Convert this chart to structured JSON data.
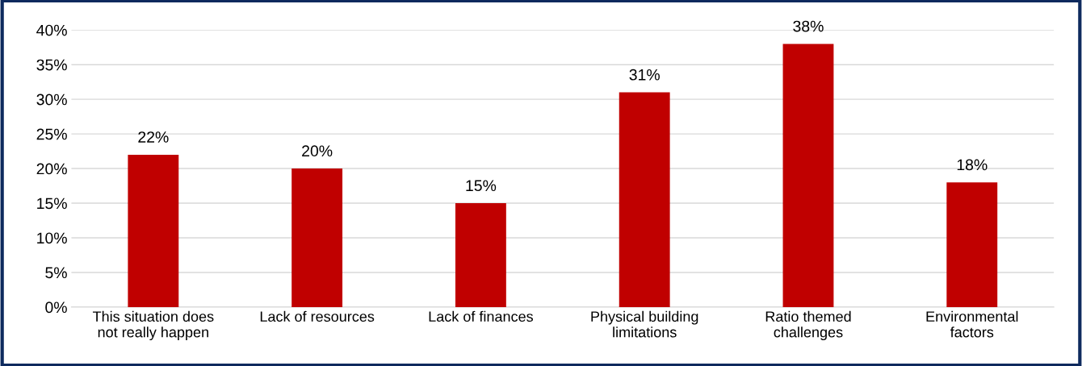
{
  "chart_data": {
    "type": "bar",
    "categories": [
      "This situation does\nnot really happen",
      "Lack of resources",
      "Lack of finances",
      "Physical building\nlimitations",
      "Ratio themed\nchallenges",
      "Environmental\nfactors"
    ],
    "values": [
      22,
      20,
      15,
      31,
      38,
      18
    ],
    "value_labels": [
      "22%",
      "20%",
      "15%",
      "31%",
      "38%",
      "18%"
    ],
    "color": "#c00000",
    "ylim": [
      0,
      40
    ],
    "yticks": [
      {
        "value": 0,
        "label": "0%"
      },
      {
        "value": 5,
        "label": "5%"
      },
      {
        "value": 10,
        "label": "10%"
      },
      {
        "value": 15,
        "label": "15%"
      },
      {
        "value": 20,
        "label": "20%"
      },
      {
        "value": 25,
        "label": "25%"
      },
      {
        "value": 30,
        "label": "30%"
      },
      {
        "value": 35,
        "label": "35%"
      },
      {
        "value": 40,
        "label": "40%"
      }
    ],
    "grid": "y",
    "legend": false
  }
}
